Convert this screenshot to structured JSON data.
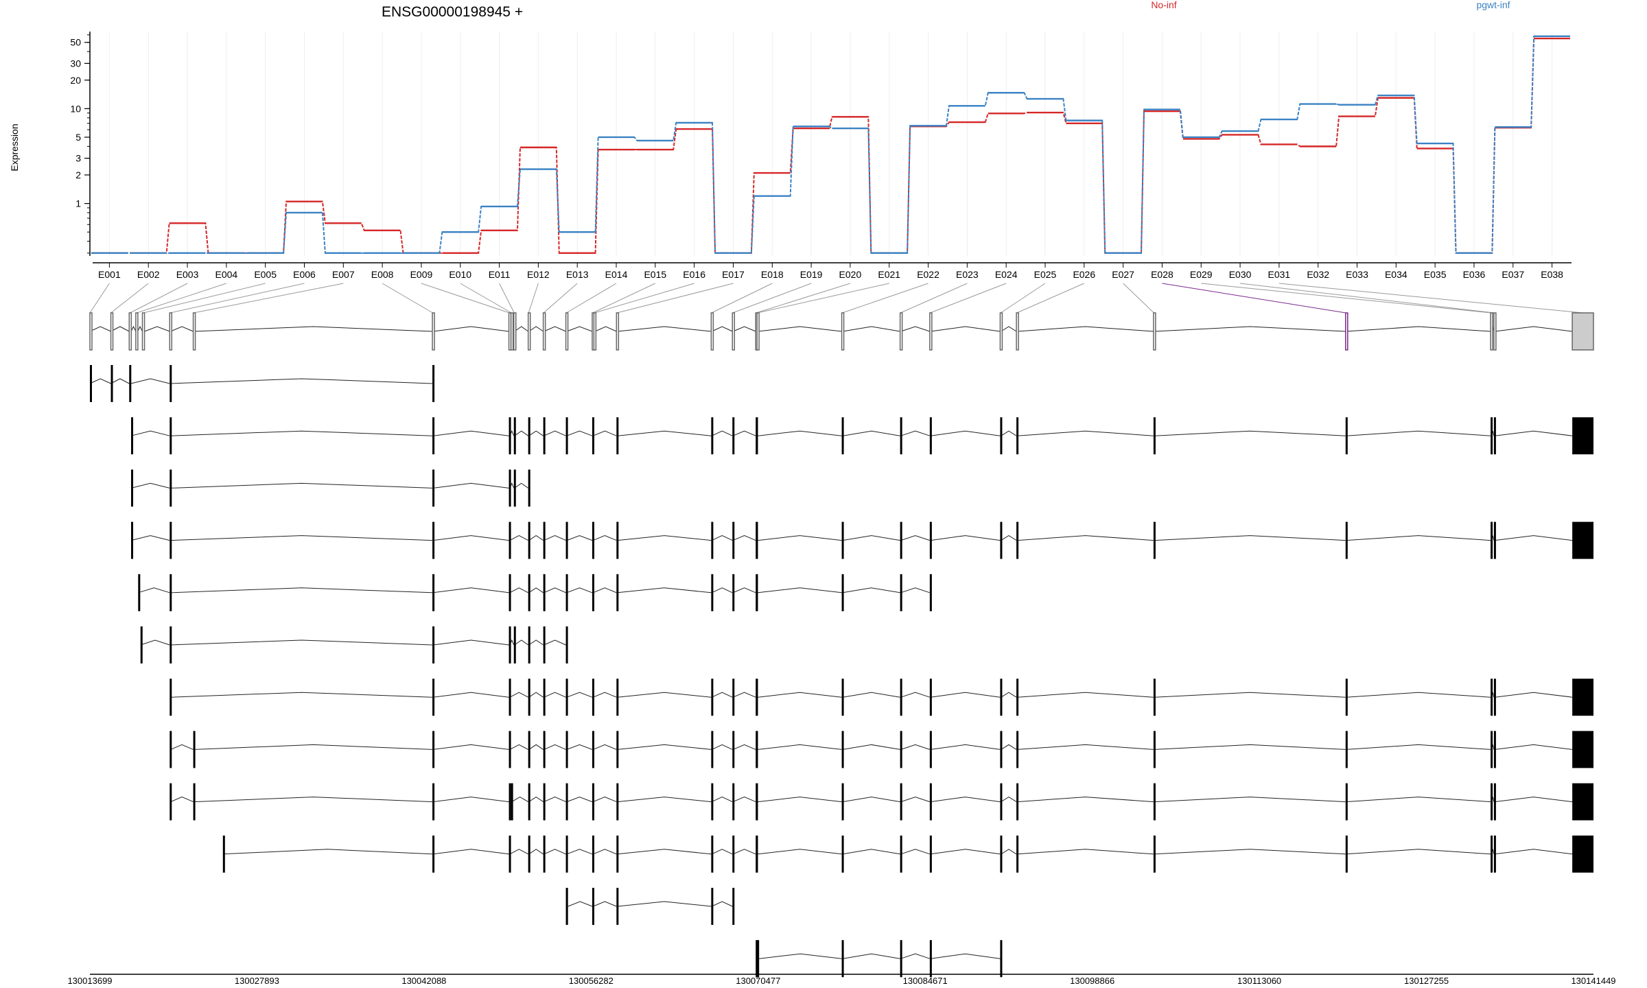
{
  "chart_data": {
    "type": "line",
    "title": "ENSG00000198945 +",
    "ylabel": "Expression",
    "ylog": true,
    "ylim": [
      0.28,
      65
    ],
    "yticks": [
      {
        "v": 1,
        "label": "1"
      },
      {
        "v": 2,
        "label": "2"
      },
      {
        "v": 3,
        "label": "3"
      },
      {
        "v": 5,
        "label": "5"
      },
      {
        "v": 10,
        "label": "10"
      },
      {
        "v": 20,
        "label": "20"
      },
      {
        "v": 30,
        "label": "30"
      },
      {
        "v": 50,
        "label": "50"
      }
    ],
    "categories": [
      "E001",
      "E002",
      "E003",
      "E004",
      "E005",
      "E006",
      "E007",
      "E008",
      "E009",
      "E010",
      "E011",
      "E012",
      "E013",
      "E014",
      "E015",
      "E016",
      "E017",
      "E018",
      "E019",
      "E020",
      "E021",
      "E022",
      "E023",
      "E024",
      "E025",
      "E026",
      "E027",
      "E028",
      "E029",
      "E030",
      "E031",
      "E032",
      "E033",
      "E034",
      "E035",
      "E036",
      "E037",
      "E038"
    ],
    "legend_position": "top",
    "series": [
      {
        "name": "No-inf",
        "color": "#d62728",
        "values": [
          0.3,
          0.3,
          0.62,
          0.3,
          0.3,
          1.05,
          0.62,
          0.52,
          0.3,
          0.3,
          0.52,
          3.9,
          0.3,
          3.7,
          3.7,
          6.1,
          0.3,
          2.1,
          6.2,
          8.2,
          0.3,
          6.5,
          7.2,
          8.9,
          9.1,
          7.0,
          0.3,
          9.4,
          4.8,
          5.3,
          4.2,
          4.0,
          8.3,
          13.0,
          3.8,
          0.3,
          6.3,
          55
        ]
      },
      {
        "name": "pgwt-inf",
        "color": "#3a82c4",
        "values": [
          0.3,
          0.3,
          0.3,
          0.3,
          0.3,
          0.8,
          0.3,
          0.3,
          0.3,
          0.5,
          0.93,
          2.3,
          0.5,
          5.0,
          4.6,
          7.1,
          0.3,
          1.2,
          6.5,
          6.2,
          0.3,
          6.6,
          10.7,
          14.7,
          12.7,
          7.5,
          0.3,
          9.8,
          5.0,
          5.8,
          7.7,
          11.2,
          11.0,
          13.8,
          4.3,
          0.3,
          6.4,
          58
        ]
      }
    ],
    "x_axis_labels": [
      "130013699",
      "130027893",
      "130042088",
      "130056282",
      "130070477",
      "130084671",
      "130098866",
      "130113060",
      "130127255",
      "130141449"
    ],
    "genomic_exons": [
      {
        "s": 0,
        "e": 0
      },
      {
        "s": 1780,
        "e": 1780
      },
      {
        "s": 3340,
        "e": 3500
      },
      {
        "s": 3900,
        "e": 4060
      },
      {
        "s": 4460,
        "e": 4640
      },
      {
        "s": 6780,
        "e": 6860
      },
      {
        "s": 8780,
        "e": 8860
      },
      {
        "s": 29100,
        "e": 29160
      },
      {
        "s": 35600,
        "e": 35680
      },
      {
        "s": 35780,
        "e": 35840
      },
      {
        "s": 36020,
        "e": 36080
      },
      {
        "s": 37240,
        "e": 37300
      },
      {
        "s": 38520,
        "e": 38580
      },
      {
        "s": 40440,
        "e": 40520
      },
      {
        "s": 42680,
        "e": 42760
      },
      {
        "s": 42820,
        "e": 42920
      },
      {
        "s": 44740,
        "e": 44820
      },
      {
        "s": 52790,
        "e": 52840
      },
      {
        "s": 54590,
        "e": 54640
      },
      {
        "s": 56570,
        "e": 56640
      },
      {
        "s": 56680,
        "e": 56760
      },
      {
        "s": 63880,
        "e": 63960
      },
      {
        "s": 68840,
        "e": 68900
      },
      {
        "s": 71360,
        "e": 71420
      },
      {
        "s": 77340,
        "e": 77420
      },
      {
        "s": 78720,
        "e": 78790
      },
      {
        "s": 90370,
        "e": 90440
      },
      {
        "s": 106690,
        "e": 106730
      },
      {
        "s": 119010,
        "e": 119100
      },
      {
        "s": 119290,
        "e": 119360
      },
      {
        "s": 125950,
        "e": 127750
      }
    ],
    "transcripts": [
      {
        "exons": [
          {
            "s": 0,
            "e": 0
          },
          {
            "s": 1780,
            "e": 1780
          },
          {
            "s": 3340,
            "e": 3500
          },
          {
            "s": 6780,
            "e": 6860
          },
          {
            "s": 29100,
            "e": 29160
          }
        ]
      },
      {
        "exons": [
          {
            "s": 3500,
            "e": 3500
          },
          {
            "s": 6780,
            "e": 6860
          },
          {
            "s": 29100,
            "e": 29160
          },
          {
            "s": 35600,
            "e": 35680
          },
          {
            "s": 36020,
            "e": 36080
          },
          {
            "s": 37240,
            "e": 37300
          },
          {
            "s": 38520,
            "e": 38580
          },
          {
            "s": 40440,
            "e": 40520
          },
          {
            "s": 42680,
            "e": 42760
          },
          {
            "s": 44740,
            "e": 44820
          },
          {
            "s": 52790,
            "e": 52840
          },
          {
            "s": 54590,
            "e": 54640
          },
          {
            "s": 56570,
            "e": 56760
          },
          {
            "s": 63880,
            "e": 63960
          },
          {
            "s": 68840,
            "e": 68900
          },
          {
            "s": 71360,
            "e": 71420
          },
          {
            "s": 77340,
            "e": 77420
          },
          {
            "s": 78720,
            "e": 78790
          },
          {
            "s": 90370,
            "e": 90440
          },
          {
            "s": 106690,
            "e": 106730
          },
          {
            "s": 119010,
            "e": 119100
          },
          {
            "s": 119290,
            "e": 119360
          },
          {
            "s": 125950,
            "e": 127750
          }
        ]
      },
      {
        "exons": [
          {
            "s": 3500,
            "e": 3500
          },
          {
            "s": 6780,
            "e": 6860
          },
          {
            "s": 29100,
            "e": 29160
          },
          {
            "s": 35600,
            "e": 35680
          },
          {
            "s": 36020,
            "e": 36080
          },
          {
            "s": 37240,
            "e": 37300
          }
        ]
      },
      {
        "exons": [
          {
            "s": 3500,
            "e": 3500
          },
          {
            "s": 6780,
            "e": 6860
          },
          {
            "s": 29100,
            "e": 29160
          },
          {
            "s": 35600,
            "e": 35680
          },
          {
            "s": 37240,
            "e": 37300
          },
          {
            "s": 38520,
            "e": 38580
          },
          {
            "s": 40440,
            "e": 40520
          },
          {
            "s": 42680,
            "e": 42760
          },
          {
            "s": 44740,
            "e": 44820
          },
          {
            "s": 52790,
            "e": 52840
          },
          {
            "s": 54590,
            "e": 54640
          },
          {
            "s": 56570,
            "e": 56760
          },
          {
            "s": 63880,
            "e": 63960
          },
          {
            "s": 68840,
            "e": 68900
          },
          {
            "s": 71360,
            "e": 71420
          },
          {
            "s": 77340,
            "e": 77420
          },
          {
            "s": 78720,
            "e": 78790
          },
          {
            "s": 90370,
            "e": 90440
          },
          {
            "s": 106690,
            "e": 106730
          },
          {
            "s": 119010,
            "e": 119100
          },
          {
            "s": 119290,
            "e": 119360
          },
          {
            "s": 125950,
            "e": 127750
          }
        ]
      },
      {
        "exons": [
          {
            "s": 4100,
            "e": 4100
          },
          {
            "s": 6780,
            "e": 6860
          },
          {
            "s": 29100,
            "e": 29160
          },
          {
            "s": 35600,
            "e": 35680
          },
          {
            "s": 37240,
            "e": 37300
          },
          {
            "s": 38520,
            "e": 38580
          },
          {
            "s": 40440,
            "e": 40520
          },
          {
            "s": 42680,
            "e": 42760
          },
          {
            "s": 44740,
            "e": 44820
          },
          {
            "s": 52790,
            "e": 52840
          },
          {
            "s": 54590,
            "e": 54640
          },
          {
            "s": 56570,
            "e": 56760
          },
          {
            "s": 63880,
            "e": 63960
          },
          {
            "s": 68840,
            "e": 68900
          },
          {
            "s": 71360,
            "e": 71420
          }
        ]
      },
      {
        "exons": [
          {
            "s": 4300,
            "e": 4300
          },
          {
            "s": 6780,
            "e": 6860
          },
          {
            "s": 29100,
            "e": 29160
          },
          {
            "s": 35600,
            "e": 35680
          },
          {
            "s": 36020,
            "e": 36080
          },
          {
            "s": 37240,
            "e": 37300
          },
          {
            "s": 38520,
            "e": 38580
          },
          {
            "s": 40440,
            "e": 40520
          }
        ]
      },
      {
        "exons": [
          {
            "s": 6780,
            "e": 6860
          },
          {
            "s": 29100,
            "e": 29160
          },
          {
            "s": 35600,
            "e": 35680
          },
          {
            "s": 37240,
            "e": 37300
          },
          {
            "s": 38520,
            "e": 38580
          },
          {
            "s": 40440,
            "e": 40520
          },
          {
            "s": 42680,
            "e": 42760
          },
          {
            "s": 44740,
            "e": 44820
          },
          {
            "s": 52790,
            "e": 52840
          },
          {
            "s": 54590,
            "e": 54640
          },
          {
            "s": 56570,
            "e": 56760
          },
          {
            "s": 63880,
            "e": 63960
          },
          {
            "s": 68840,
            "e": 68900
          },
          {
            "s": 71360,
            "e": 71420
          },
          {
            "s": 77340,
            "e": 77420
          },
          {
            "s": 78720,
            "e": 78790
          },
          {
            "s": 90370,
            "e": 90440
          },
          {
            "s": 106690,
            "e": 106730
          },
          {
            "s": 119010,
            "e": 119100
          },
          {
            "s": 119290,
            "e": 119360
          },
          {
            "s": 125950,
            "e": 127750
          }
        ]
      },
      {
        "exons": [
          {
            "s": 6780,
            "e": 6860
          },
          {
            "s": 8780,
            "e": 8860
          },
          {
            "s": 29100,
            "e": 29160
          },
          {
            "s": 35600,
            "e": 35680
          },
          {
            "s": 37240,
            "e": 37300
          },
          {
            "s": 38520,
            "e": 38580
          },
          {
            "s": 40440,
            "e": 40520
          },
          {
            "s": 42680,
            "e": 42760
          },
          {
            "s": 44740,
            "e": 44820
          },
          {
            "s": 52790,
            "e": 52840
          },
          {
            "s": 54590,
            "e": 54640
          },
          {
            "s": 56570,
            "e": 56760
          },
          {
            "s": 63880,
            "e": 63960
          },
          {
            "s": 68840,
            "e": 68900
          },
          {
            "s": 71360,
            "e": 71420
          },
          {
            "s": 77340,
            "e": 77420
          },
          {
            "s": 78720,
            "e": 78790
          },
          {
            "s": 90370,
            "e": 90440
          },
          {
            "s": 106690,
            "e": 106730
          },
          {
            "s": 119010,
            "e": 119100
          },
          {
            "s": 119290,
            "e": 119360
          },
          {
            "s": 125950,
            "e": 127750
          }
        ]
      },
      {
        "exons": [
          {
            "s": 6780,
            "e": 6860
          },
          {
            "s": 8780,
            "e": 8860
          },
          {
            "s": 29100,
            "e": 29160
          },
          {
            "s": 35600,
            "e": 35680
          },
          {
            "s": 35780,
            "e": 35840
          },
          {
            "s": 37240,
            "e": 37300
          },
          {
            "s": 38520,
            "e": 38580
          },
          {
            "s": 40440,
            "e": 40520
          },
          {
            "s": 42680,
            "e": 42760
          },
          {
            "s": 44740,
            "e": 44820
          },
          {
            "s": 52790,
            "e": 52840
          },
          {
            "s": 54590,
            "e": 54640
          },
          {
            "s": 56570,
            "e": 56760
          },
          {
            "s": 63880,
            "e": 63960
          },
          {
            "s": 68840,
            "e": 68900
          },
          {
            "s": 71360,
            "e": 71420
          },
          {
            "s": 77340,
            "e": 77420
          },
          {
            "s": 78720,
            "e": 78790
          },
          {
            "s": 90370,
            "e": 90440
          },
          {
            "s": 106690,
            "e": 106730
          },
          {
            "s": 119010,
            "e": 119100
          },
          {
            "s": 119290,
            "e": 119360
          },
          {
            "s": 125950,
            "e": 127750
          }
        ]
      },
      {
        "exons": [
          {
            "s": 11300,
            "e": 11300
          },
          {
            "s": 29100,
            "e": 29160
          },
          {
            "s": 35600,
            "e": 35680
          },
          {
            "s": 37240,
            "e": 37300
          },
          {
            "s": 38520,
            "e": 38580
          },
          {
            "s": 40440,
            "e": 40520
          },
          {
            "s": 42680,
            "e": 42760
          },
          {
            "s": 44740,
            "e": 44820
          },
          {
            "s": 52790,
            "e": 52840
          },
          {
            "s": 54590,
            "e": 54640
          },
          {
            "s": 56570,
            "e": 56760
          },
          {
            "s": 63880,
            "e": 63960
          },
          {
            "s": 68840,
            "e": 68900
          },
          {
            "s": 71360,
            "e": 71420
          },
          {
            "s": 77340,
            "e": 77420
          },
          {
            "s": 78720,
            "e": 78790
          },
          {
            "s": 90370,
            "e": 90440
          },
          {
            "s": 106690,
            "e": 106730
          },
          {
            "s": 119010,
            "e": 119100
          },
          {
            "s": 119290,
            "e": 119360
          },
          {
            "s": 125950,
            "e": 127750
          }
        ]
      },
      {
        "exons": [
          {
            "s": 40440,
            "e": 40620
          },
          {
            "s": 42680,
            "e": 42760
          },
          {
            "s": 44740,
            "e": 44820
          },
          {
            "s": 52790,
            "e": 52840
          },
          {
            "s": 54590,
            "e": 54640
          }
        ]
      },
      {
        "exons": [
          {
            "s": 56570,
            "e": 56860
          },
          {
            "s": 63880,
            "e": 63960
          },
          {
            "s": 68840,
            "e": 68900
          },
          {
            "s": 71360,
            "e": 71420
          },
          {
            "s": 77340,
            "e": 77420
          }
        ]
      }
    ]
  }
}
